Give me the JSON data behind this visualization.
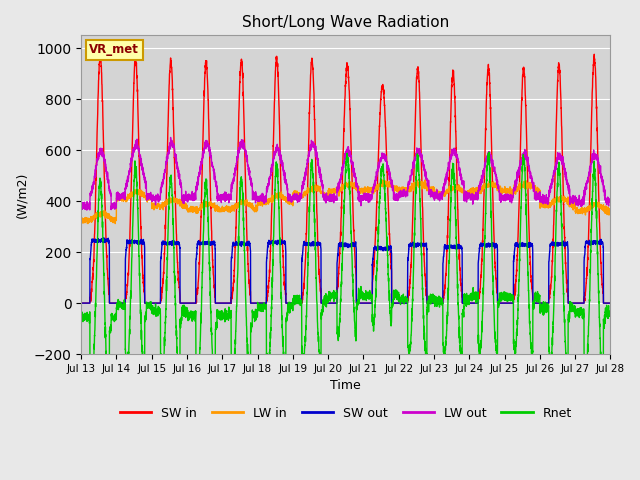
{
  "title": "Short/Long Wave Radiation",
  "ylabel": "(W/m2)",
  "xlabel": "Time",
  "ylim": [
    -200,
    1050
  ],
  "yticks": [
    -200,
    0,
    200,
    400,
    600,
    800,
    1000
  ],
  "background_color": "#e8e8e8",
  "plot_bg_color": "#d4d4d4",
  "label_box": "VR_met",
  "num_days": 15,
  "lines": {
    "SW_in": {
      "color": "#ff0000",
      "label": "SW in",
      "lw": 1.0
    },
    "LW_in": {
      "color": "#ff9900",
      "label": "LW in",
      "lw": 1.0
    },
    "SW_out": {
      "color": "#0000cc",
      "label": "SW out",
      "lw": 1.0
    },
    "LW_out": {
      "color": "#cc00cc",
      "label": "LW out",
      "lw": 1.0
    },
    "Rnet": {
      "color": "#00cc00",
      "label": "Rnet",
      "lw": 1.0
    }
  },
  "xtick_labels": [
    "Jul 13",
    "Jul 14",
    "Jul 15",
    "Jul 16",
    "Jul 17",
    "Jul 18",
    "Jul 19",
    "Jul 20",
    "Jul 21",
    "Jul 22",
    "Jul 23",
    "Jul 24",
    "Jul 25",
    "Jul 26",
    "Jul 27",
    "Jul 28"
  ]
}
